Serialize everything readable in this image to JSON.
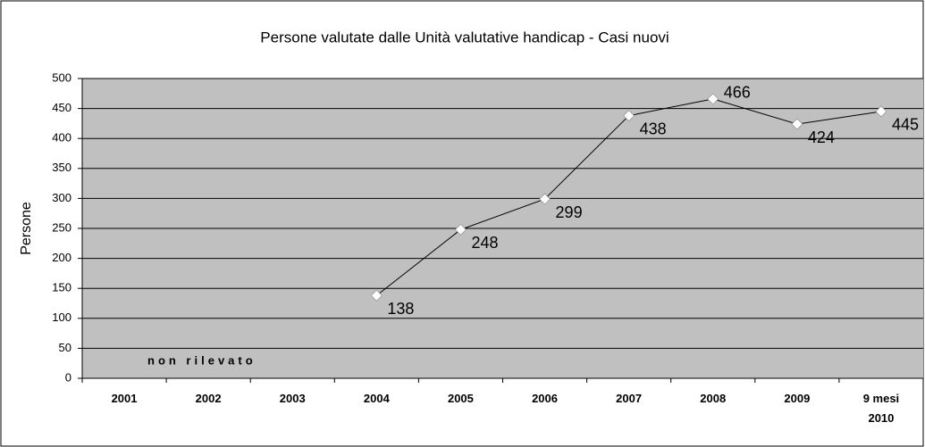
{
  "chart_data": {
    "type": "line",
    "title": "Persone valutate dalle Unità valutative handicap - Casi nuovi",
    "y_label": "Persone",
    "annotation": "non rilevato",
    "categories": [
      "2001",
      "2002",
      "2003",
      "2004",
      "2005",
      "2006",
      "2007",
      "2008",
      "2009",
      "9 mesi 2010"
    ],
    "values": [
      null,
      null,
      null,
      138,
      248,
      299,
      438,
      466,
      424,
      445
    ],
    "color": "#000000",
    "ylim": [
      0,
      500
    ],
    "yticks": [
      0,
      50,
      100,
      150,
      200,
      250,
      300,
      350,
      400,
      450,
      500
    ],
    "grid": true
  }
}
